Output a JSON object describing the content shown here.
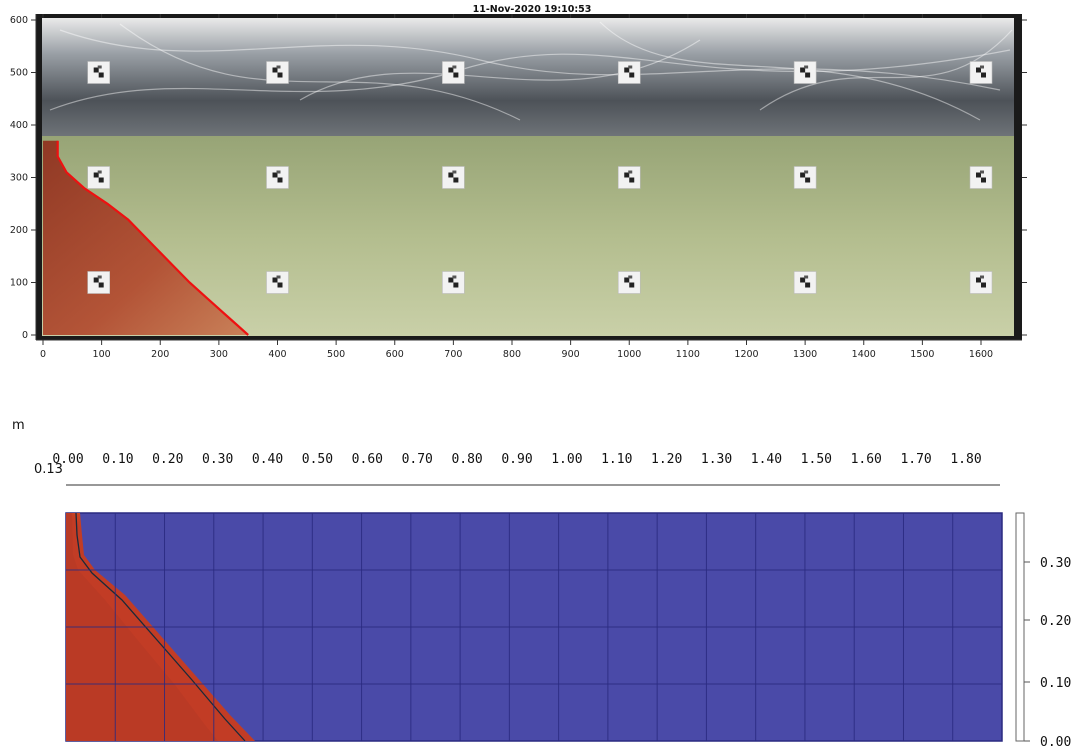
{
  "photo": {
    "timestamp": "11-Nov-2020 19:10:53",
    "x_ticks": [
      "0",
      "100",
      "200",
      "300",
      "400",
      "500",
      "600",
      "700",
      "800",
      "900",
      "1000",
      "1100",
      "1200",
      "1300",
      "1400",
      "1500",
      "1600"
    ],
    "y_ticks": [
      "0",
      "100",
      "200",
      "300",
      "400",
      "500",
      "600"
    ],
    "x_range": [
      0,
      1700
    ],
    "y_range": [
      0,
      600
    ],
    "marker_x": [
      95,
      400,
      700,
      1000,
      1300,
      1600
    ],
    "marker_y": [
      100,
      300,
      500
    ],
    "interface_curve": [
      [
        350,
        0
      ],
      [
        330,
        20
      ],
      [
        310,
        40
      ],
      [
        280,
        70
      ],
      [
        250,
        100
      ],
      [
        215,
        140
      ],
      [
        180,
        180
      ],
      [
        145,
        220
      ],
      [
        110,
        250
      ],
      [
        70,
        280
      ],
      [
        40,
        310
      ],
      [
        25,
        340
      ],
      [
        25,
        370
      ]
    ],
    "colors": {
      "red_fluid": "#b3472e",
      "green_fluid": "#b6c08f",
      "curve": "#ee1111"
    }
  },
  "simulation": {
    "unit": "m",
    "offset_label": "0.13",
    "x_ticks": [
      "0.00",
      "0.10",
      "0.20",
      "0.30",
      "0.40",
      "0.50",
      "0.60",
      "0.70",
      "0.80",
      "0.90",
      "1.00",
      "1.10",
      "1.20",
      "1.30",
      "1.40",
      "1.50",
      "1.60",
      "1.70",
      "1.80"
    ],
    "y_ticks": [
      "0.30",
      "0.20",
      "0.10",
      "0.00"
    ],
    "colors": {
      "background": "#4a4aa8",
      "hot": "#c23c25",
      "grid": "#2a2a80"
    }
  }
}
